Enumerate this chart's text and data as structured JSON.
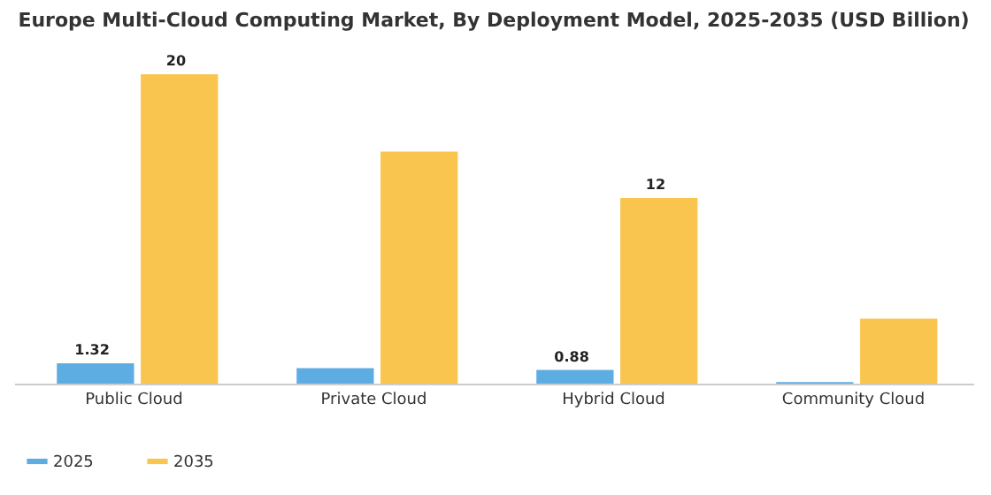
{
  "chart_data": {
    "type": "bar",
    "title": "Europe Multi-Cloud Computing Market, By Deployment Model, 2025-2035 (USD Billion)",
    "categories": [
      "Public Cloud",
      "Private Cloud",
      "Hybrid Cloud",
      "Community Cloud"
    ],
    "series": [
      {
        "name": "2025",
        "color": "#5dade2",
        "values": [
          1.32,
          1.0,
          0.88,
          0.1
        ],
        "value_labels": [
          "1.32",
          null,
          "0.88",
          null
        ]
      },
      {
        "name": "2035",
        "color": "#f9c54e",
        "values": [
          20,
          15.0,
          12,
          4.2
        ],
        "value_labels": [
          "20",
          null,
          "12",
          null
        ]
      }
    ],
    "legend": "bottom",
    "grid": false
  }
}
